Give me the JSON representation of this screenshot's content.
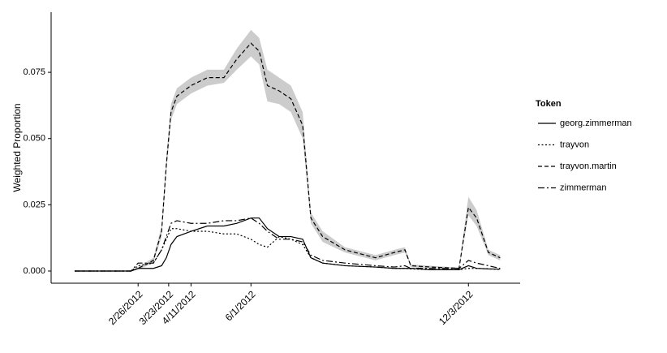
{
  "chart_data": {
    "type": "line",
    "y_label": "Weighted Proportion",
    "legend_title": "Token",
    "legend_position": "right",
    "x": [
      "1/3/2012",
      "2/20/2012",
      "2/26/2012",
      "3/10/2012",
      "3/17/2012",
      "3/21/2012",
      "3/25/2012",
      "3/30/2012",
      "4/11/2012",
      "4/25/2012",
      "5/9/2012",
      "5/20/2012",
      "6/1/2012",
      "6/8/2012",
      "6/15/2012",
      "6/25/2012",
      "7/5/2012",
      "7/15/2012",
      "7/22/2012",
      "8/1/2012",
      "8/20/2012",
      "9/15/2012",
      "10/1/2012",
      "10/10/2012",
      "10/15/2012",
      "11/1/2012",
      "11/25/2012",
      "12/3/2012",
      "12/10/2012",
      "12/20/2012",
      "12/30/2012"
    ],
    "xlim": [
      "12/14/2011",
      "1/16/2013"
    ],
    "xticks": [
      "2/26/2012",
      "3/23/2012",
      "4/11/2012",
      "6/1/2012",
      "12/3/2012"
    ],
    "ylim": [
      -0.0046,
      0.0977
    ],
    "yticks": [
      {
        "value": 0,
        "label": "0.000"
      },
      {
        "value": 0.025,
        "label": "0.025"
      },
      {
        "value": 0.05,
        "label": "0.050"
      },
      {
        "value": 0.075,
        "label": "0.075"
      }
    ],
    "series": [
      {
        "name": "georg.zimmerman",
        "color": "#000000",
        "linetype": "solid",
        "values": [
          0,
          0,
          0.001,
          0.001,
          0.002,
          0.005,
          0.01,
          0.013,
          0.015,
          0.017,
          0.017,
          0.018,
          0.02,
          0.02,
          0.016,
          0.013,
          0.013,
          0.012,
          0.005,
          0.003,
          0.002,
          0.0015,
          0.001,
          0.001,
          0.001,
          0.0005,
          0.0005,
          0.002,
          0.001,
          0.0008,
          0.0007
        ]
      },
      {
        "name": "trayvon",
        "color": "#000000",
        "linetype": "dotted",
        "values": [
          0,
          0,
          0.002,
          0.003,
          0.008,
          0.012,
          0.016,
          0.016,
          0.015,
          0.015,
          0.014,
          0.014,
          0.012,
          0.01,
          0.009,
          0.013,
          0.012,
          0.01,
          0.005,
          0.003,
          0.002,
          0.0015,
          0.001,
          0.001,
          0.0008,
          0.0005,
          0.0005,
          0.001,
          0.001,
          0.0008,
          0.0006
        ]
      },
      {
        "name": "trayvon.martin",
        "color": "#000000",
        "linetype": "dashed",
        "values": [
          0,
          0,
          0.001,
          0.004,
          0.015,
          0.04,
          0.06,
          0.066,
          0.07,
          0.073,
          0.073,
          0.08,
          0.086,
          0.083,
          0.07,
          0.068,
          0.065,
          0.055,
          0.02,
          0.013,
          0.008,
          0.005,
          0.007,
          0.008,
          0.002,
          0.0015,
          0.001,
          0.024,
          0.02,
          0.007,
          0.005
        ],
        "band": {
          "color": "#cccccc",
          "lower": [
            0,
            0,
            0.0005,
            0.003,
            0.013,
            0.037,
            0.057,
            0.063,
            0.067,
            0.07,
            0.071,
            0.076,
            0.081,
            0.078,
            0.064,
            0.063,
            0.06,
            0.05,
            0.018,
            0.011,
            0.007,
            0.004,
            0.006,
            0.007,
            0.0015,
            0.001,
            0.0007,
            0.021,
            0.017,
            0.006,
            0.004
          ],
          "upper": [
            0,
            0,
            0.0015,
            0.005,
            0.017,
            0.043,
            0.063,
            0.069,
            0.073,
            0.076,
            0.076,
            0.084,
            0.091,
            0.088,
            0.076,
            0.073,
            0.07,
            0.06,
            0.022,
            0.015,
            0.009,
            0.006,
            0.008,
            0.009,
            0.0025,
            0.002,
            0.0013,
            0.028,
            0.023,
            0.008,
            0.006
          ]
        }
      },
      {
        "name": "zimmerman",
        "color": "#000000",
        "linetype": "longdash",
        "values": [
          0,
          0,
          0.003,
          0.003,
          0.008,
          0.013,
          0.018,
          0.019,
          0.018,
          0.018,
          0.019,
          0.019,
          0.02,
          0.018,
          0.015,
          0.012,
          0.012,
          0.011,
          0.006,
          0.004,
          0.003,
          0.002,
          0.0015,
          0.002,
          0.001,
          0.001,
          0.001,
          0.004,
          0.003,
          0.002,
          0.001
        ]
      }
    ]
  }
}
